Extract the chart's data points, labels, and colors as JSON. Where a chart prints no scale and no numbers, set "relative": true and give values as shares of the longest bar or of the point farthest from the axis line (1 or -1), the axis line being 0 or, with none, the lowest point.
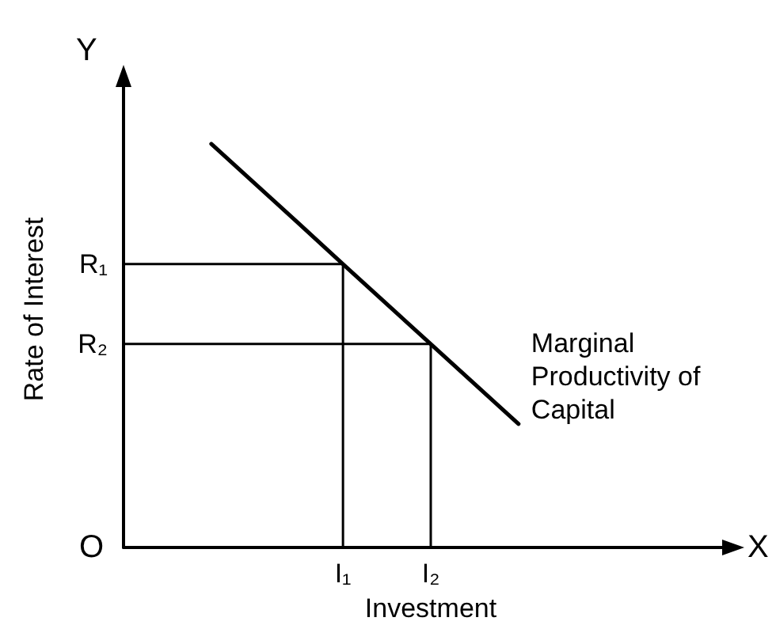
{
  "chart_data": {
    "type": "line",
    "relative": true,
    "xlabel": "Investment",
    "ylabel": "Rate of Interest",
    "categories": [
      null,
      null,
      null,
      null,
      null,
      "I₁",
      null,
      "I₂",
      null,
      null,
      null,
      null,
      null,
      null,
      null
    ],
    "annotations": [
      "O",
      "X",
      "Y",
      "R₁",
      "R₂"
    ],
    "grid": false,
    "legend": false,
    "marker": "none",
    "line_style": "solid",
    "series": [
      {
        "name": "Marginal Productivity of Capital",
        "color": "#000000",
        "values": [
          null,
          null,
          1,
          0.901,
          0.802,
          0.702,
          0.603,
          0.504,
          0.405,
          0.306,
          null,
          null,
          null,
          null,
          null
        ]
      }
    ]
  }
}
